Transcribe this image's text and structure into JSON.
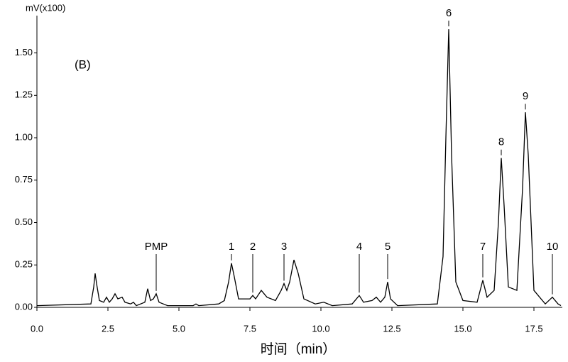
{
  "chart_data": {
    "type": "line",
    "y_label": "mV(x100)",
    "x_label": "时间（min）",
    "annotation": "(B)",
    "xlim": [
      0,
      18.5
    ],
    "ylim": [
      0,
      1.72
    ],
    "xticks": [
      {
        "value": 0,
        "label": "0.0"
      },
      2.5,
      {
        "value": 5,
        "label": "5.0"
      },
      7.5,
      {
        "value": 10,
        "label": "10.0"
      },
      12.5,
      {
        "value": 15,
        "label": "15.0"
      },
      17.5
    ],
    "yticks": [
      {
        "value": 0,
        "label": "0.00"
      },
      0.25,
      {
        "value": 0.5,
        "label": "0.50"
      },
      0.75,
      {
        "value": 1,
        "label": "1.00"
      },
      1.25,
      {
        "value": 1.5,
        "label": "1.50"
      }
    ],
    "series": [
      {
        "color": "#000000",
        "x": [
          0,
          1.9,
          2.0,
          2.05,
          2.1,
          2.2,
          2.35,
          2.45,
          2.55,
          2.65,
          2.75,
          2.85,
          3.0,
          3.1,
          3.3,
          3.4,
          3.5,
          3.8,
          3.9,
          4.0,
          4.1,
          4.2,
          4.3,
          4.6,
          5.5,
          5.6,
          5.7,
          6.4,
          6.6,
          6.75,
          6.85,
          6.95,
          7.1,
          7.5,
          7.6,
          7.7,
          7.9,
          8.1,
          8.4,
          8.6,
          8.7,
          8.8,
          8.9,
          9.05,
          9.2,
          9.4,
          9.8,
          10.1,
          10.4,
          11.1,
          11.35,
          11.5,
          11.8,
          11.95,
          12.1,
          12.25,
          12.35,
          12.45,
          12.7,
          14.1,
          14.3,
          14.4,
          14.5,
          14.6,
          14.75,
          15.0,
          15.5,
          15.7,
          15.85,
          16.1,
          16.25,
          16.35,
          16.45,
          16.6,
          16.9,
          17.1,
          17.2,
          17.3,
          17.5,
          17.9,
          18.15,
          18.35,
          18.45
        ],
        "values": [
          0.01,
          0.02,
          0.12,
          0.2,
          0.14,
          0.04,
          0.03,
          0.06,
          0.03,
          0.05,
          0.08,
          0.05,
          0.06,
          0.03,
          0.02,
          0.03,
          0.01,
          0.03,
          0.11,
          0.04,
          0.05,
          0.08,
          0.03,
          0.01,
          0.01,
          0.02,
          0.01,
          0.02,
          0.04,
          0.15,
          0.26,
          0.18,
          0.05,
          0.05,
          0.07,
          0.05,
          0.1,
          0.06,
          0.04,
          0.1,
          0.14,
          0.1,
          0.15,
          0.28,
          0.2,
          0.05,
          0.02,
          0.03,
          0.01,
          0.02,
          0.07,
          0.03,
          0.04,
          0.06,
          0.03,
          0.06,
          0.15,
          0.05,
          0.01,
          0.02,
          0.3,
          1.0,
          1.64,
          0.9,
          0.15,
          0.04,
          0.03,
          0.16,
          0.06,
          0.1,
          0.5,
          0.88,
          0.6,
          0.12,
          0.1,
          0.7,
          1.15,
          0.9,
          0.1,
          0.02,
          0.06,
          0.02,
          0.01
        ]
      }
    ],
    "peak_labels": [
      {
        "text": "PMP",
        "x": 4.2
      },
      {
        "text": "1",
        "x": 6.85
      },
      {
        "text": "2",
        "x": 7.6
      },
      {
        "text": "3",
        "x": 8.7
      },
      {
        "text": "4",
        "x": 11.35
      },
      {
        "text": "5",
        "x": 12.35
      },
      {
        "text": "6",
        "x": 14.5
      },
      {
        "text": "7",
        "x": 15.7
      },
      {
        "text": "8",
        "x": 16.35
      },
      {
        "text": "9",
        "x": 17.2
      },
      {
        "text": "10",
        "x": 18.15
      }
    ]
  }
}
